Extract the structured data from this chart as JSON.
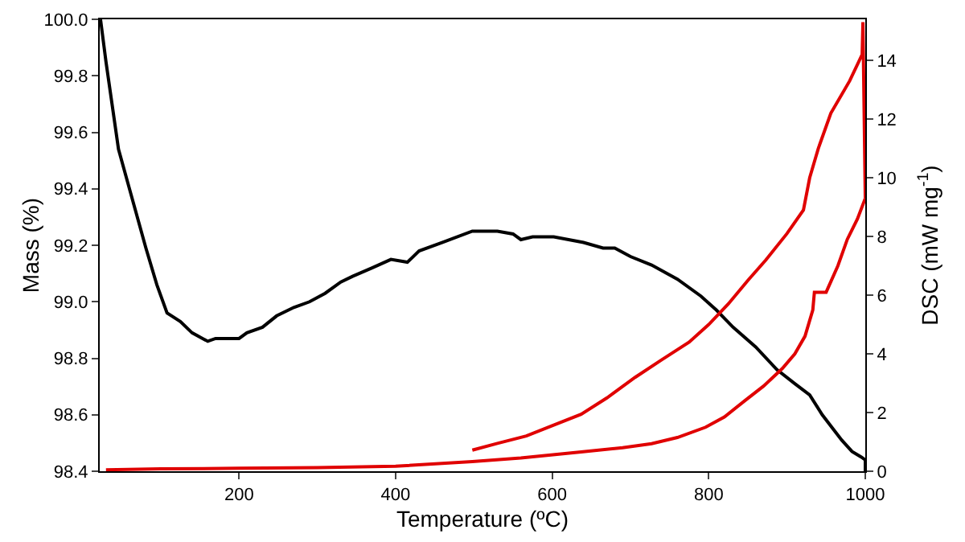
{
  "chart_data": {
    "type": "line",
    "xlabel": "Temperature (ºC)",
    "ylabel": "Mass (%)",
    "y2label": "DSC (mW mg$^{-1}$)",
    "xlim": [
      22,
      1000
    ],
    "xticks": [
      200,
      400,
      600,
      800,
      1000
    ],
    "ylim": [
      98.4,
      100.0
    ],
    "yticks": [
      98.4,
      98.6,
      98.8,
      {
        "value": 99.0,
        "label": "99.0"
      },
      99.2,
      99.4,
      99.6,
      99.8,
      {
        "value": 100.0,
        "label": "100.0"
      }
    ],
    "y2lim": [
      0,
      15.4
    ],
    "y2ticks": [
      0,
      2,
      4,
      6,
      8,
      10,
      12,
      14
    ],
    "grid": false,
    "line_style": "solid",
    "marker": "none",
    "series": [
      {
        "color": "#000000",
        "x": [
          23,
          30,
          46,
          60,
          81,
          95,
          108,
          125,
          140,
          160,
          170,
          190,
          200,
          210,
          230,
          248,
          270,
          290,
          310,
          330,
          345,
          370,
          394,
          415,
          430,
          460,
          498,
          530,
          550,
          560,
          575,
          602,
          640,
          665,
          680,
          700,
          727,
          760,
          790,
          810,
          831,
          860,
          887,
          910,
          929,
          945,
          956,
          970,
          983,
          995,
          1000,
          1000
        ],
        "values": [
          100.0,
          99.85,
          99.54,
          99.4,
          99.19,
          99.06,
          98.96,
          98.93,
          98.89,
          98.86,
          98.87,
          98.87,
          98.87,
          98.89,
          98.91,
          98.95,
          98.98,
          99.0,
          99.03,
          99.07,
          99.09,
          99.12,
          99.15,
          99.14,
          99.18,
          99.21,
          99.25,
          99.25,
          99.24,
          99.22,
          99.23,
          99.23,
          99.21,
          99.19,
          99.19,
          99.16,
          99.13,
          99.08,
          99.02,
          98.97,
          98.91,
          98.84,
          98.76,
          98.71,
          98.67,
          98.6,
          98.56,
          98.51,
          98.47,
          98.45,
          98.44,
          98.4
        ]
      },
      {
        "color": "#e00000",
        "axis": "y2",
        "x": [
          30,
          100,
          200,
          300,
          400,
          498,
          560,
          637,
          690,
          727,
          760,
          796,
          820,
          846,
          870,
          894,
          910,
          923,
          933,
          935,
          950,
          965,
          977,
          990,
          1000,
          997,
          996,
          980,
          956,
          940,
          929,
          921,
          900,
          873,
          850,
          825,
          800,
          775,
          740,
          706,
          670,
          637,
          600,
          567,
          530,
          498
        ],
        "values": [
          0.05,
          0.08,
          0.1,
          0.12,
          0.17,
          0.33,
          0.45,
          0.66,
          0.8,
          0.94,
          1.15,
          1.5,
          1.85,
          2.4,
          2.9,
          3.5,
          4.0,
          4.6,
          5.5,
          6.1,
          6.1,
          7.0,
          7.9,
          8.6,
          9.3,
          15.3,
          14.2,
          13.3,
          12.2,
          11.0,
          10.0,
          8.9,
          8.1,
          7.2,
          6.5,
          5.7,
          5.0,
          4.4,
          3.8,
          3.2,
          2.5,
          1.94,
          1.55,
          1.2,
          0.95,
          0.72
        ]
      }
    ]
  }
}
